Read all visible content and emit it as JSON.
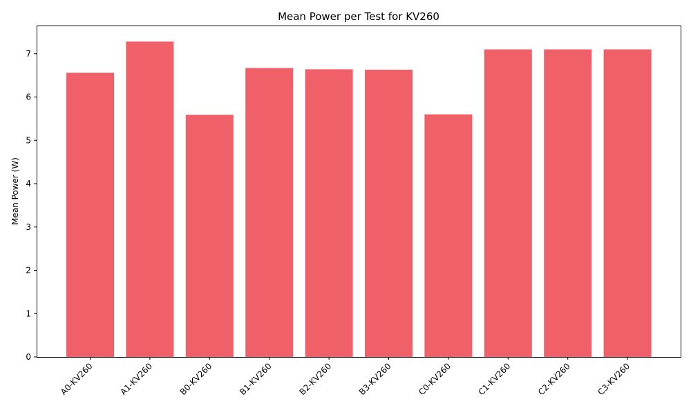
{
  "chart_data": {
    "type": "bar",
    "title": "Mean Power per Test for KV260",
    "xlabel": "",
    "ylabel": "Mean Power (W)",
    "categories": [
      "A0-KV260",
      "A1-KV260",
      "B0-KV260",
      "B1-KV260",
      "B2-KV260",
      "B3-KV260",
      "C0-KV260",
      "C1-KV260",
      "C2-KV260",
      "C3-KV260"
    ],
    "values": [
      6.56,
      7.28,
      5.59,
      6.67,
      6.64,
      6.63,
      5.6,
      7.1,
      7.1,
      7.1
    ],
    "ylim": [
      0,
      7.65
    ],
    "yticks": [
      0,
      1,
      2,
      3,
      4,
      5,
      6,
      7
    ],
    "bar_color": "#f06068",
    "grid": false,
    "legend": "none"
  }
}
